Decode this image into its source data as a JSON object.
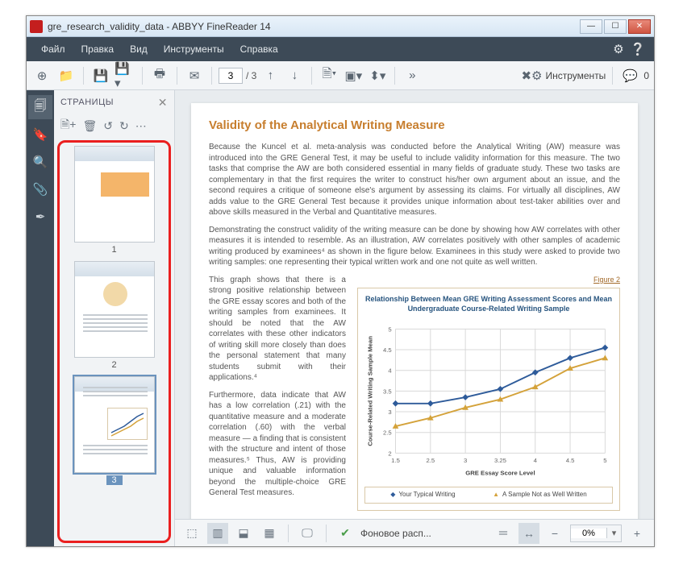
{
  "titlebar": {
    "title": "gre_research_validity_data - ABBYY FineReader 14"
  },
  "menu": {
    "file": "Файл",
    "edit": "Правка",
    "view": "Вид",
    "tools": "Инструменты",
    "help": "Справка"
  },
  "toolbar": {
    "page_current": "3",
    "page_total": "/ 3",
    "tools_label": "Инструменты",
    "comments_count": "0"
  },
  "pages_panel": {
    "title": "СТРАНИЦЫ",
    "p1": "1",
    "p2": "2",
    "p3": "3"
  },
  "doc": {
    "heading": "Validity of the Analytical Writing Measure",
    "para1": "Because the Kuncel et al. meta-analysis was conducted before the Analytical Writing (AW) measure was introduced into the GRE General Test, it may be useful to include validity information for this measure. The two tasks that comprise the AW are both considered essential in many fields of graduate study. These two tasks are complementary in that the first requires the writer to construct his/her own argument about an issue, and the second requires a critique of someone else's argument by assessing its claims. For virtually all disciplines, AW adds value to the GRE General Test because it provides unique information about test-taker abilities over and above skills measured in the Verbal and Quantitative measures.",
    "para2": "Demonstrating the construct validity of the writing measure can be done by showing how AW correlates with other measures it is intended to resemble. As an illustration, AW correlates positively with other samples of academic writing produced by examinees⁴ as shown in the figure below. Examinees in this study were asked to provide two writing samples: one representing their typical written work and one not quite as well written.",
    "left1": "This graph shows that there is a strong positive relationship between the GRE essay scores and both of the writing samples from examinees. It should be noted that the AW correlates with these other indicators of writing skill more closely than does the personal statement that many students submit with their applications.⁴",
    "left2": "Furthermore, data indicate that AW has a low correlation (.21) with the quantitative measure and a moderate correlation (.60) with the verbal measure — a finding that is consistent with the structure and intent of those measures.⁵ Thus, AW is providing unique and valuable information beyond the multiple-choice GRE General Test measures.",
    "figure_label": "Figure 2"
  },
  "chart": {
    "title": "Relationship Between Mean GRE Writing Assessment Scores and Mean Undergraduate Course-Related Writing Sample",
    "xlabel": "GRE Essay Score Level",
    "ylabel": "Course-Related Writing Sample Mean",
    "x_ticks": [
      "1.5",
      "2.5",
      "3",
      "3.25",
      "4",
      "4.5",
      "5"
    ],
    "y_ticks": [
      "2",
      "2.5",
      "3",
      "3.5",
      "4",
      "4.5",
      "5"
    ],
    "ylim": [
      2,
      5
    ],
    "series": [
      {
        "name": "Your Typical Writing",
        "color": "#2e5b9a",
        "marker": "diamond",
        "values": [
          3.2,
          3.2,
          3.35,
          3.55,
          3.95,
          4.3,
          4.55
        ]
      },
      {
        "name": "A Sample Not as Well Written",
        "color": "#d4a23a",
        "marker": "triangle",
        "values": [
          2.65,
          2.85,
          3.1,
          3.3,
          3.6,
          4.05,
          4.3
        ]
      }
    ],
    "grid_color": "#d8d8d8",
    "legend": {
      "item1": "Your Typical Writing",
      "item2": "A Sample Not as Well Written"
    }
  },
  "botbar": {
    "bg_label": "Фоновое расп...",
    "zoom": "0%"
  }
}
